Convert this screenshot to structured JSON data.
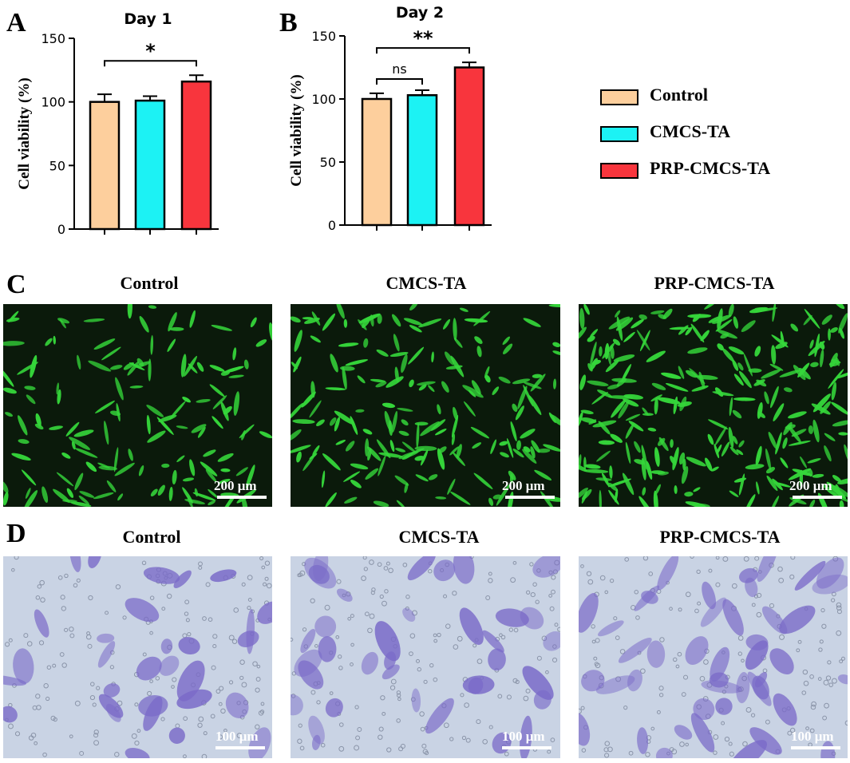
{
  "panels": {
    "A": "A",
    "B": "B",
    "C": "C",
    "D": "D"
  },
  "chart_data": [
    {
      "type": "bar",
      "title": "Day 1",
      "ylabel": "Cell viability (%)",
      "ylim": [
        0,
        150
      ],
      "yticks": [
        0,
        50,
        100,
        150
      ],
      "categories": [
        "Control",
        "CMCS-TA",
        "PRP-CMCS-TA"
      ],
      "values": [
        100,
        101,
        116
      ],
      "errors": [
        6,
        3.5,
        5
      ],
      "colors": [
        "#FDCF9D",
        "#1CF2F4",
        "#F8353D"
      ],
      "significance": [
        {
          "from": 0,
          "to": 2,
          "label": "*"
        }
      ]
    },
    {
      "type": "bar",
      "title": "Day 2",
      "ylabel": "Cell viability (%)",
      "ylim": [
        0,
        150
      ],
      "yticks": [
        0,
        50,
        100,
        150
      ],
      "categories": [
        "Control",
        "CMCS-TA",
        "PRP-CMCS-TA"
      ],
      "values": [
        100,
        103,
        125
      ],
      "errors": [
        4.5,
        4,
        4
      ],
      "colors": [
        "#FDCF9D",
        "#1CF2F4",
        "#F8353D"
      ],
      "significance": [
        {
          "from": 0,
          "to": 1,
          "label": "ns"
        },
        {
          "from": 0,
          "to": 2,
          "label": "**"
        }
      ]
    }
  ],
  "legend": [
    {
      "label": "Control",
      "color": "#FDCF9D"
    },
    {
      "label": "CMCS-TA",
      "color": "#1CF2F4"
    },
    {
      "label": "PRP-CMCS-TA",
      "color": "#F8353D"
    }
  ],
  "fluorescence_row": {
    "titles": [
      "Control",
      "CMCS-TA",
      "PRP-CMCS-TA"
    ],
    "scale_label": "200 μm",
    "background": "#0b1a0b",
    "cell_color": "#35d63a"
  },
  "stain_row": {
    "titles": [
      "Control",
      "CMCS-TA",
      "PRP-CMCS-TA"
    ],
    "scale_label": "100 μm",
    "background": "#c9d3e4",
    "cell_color": "#7a6ac8"
  }
}
